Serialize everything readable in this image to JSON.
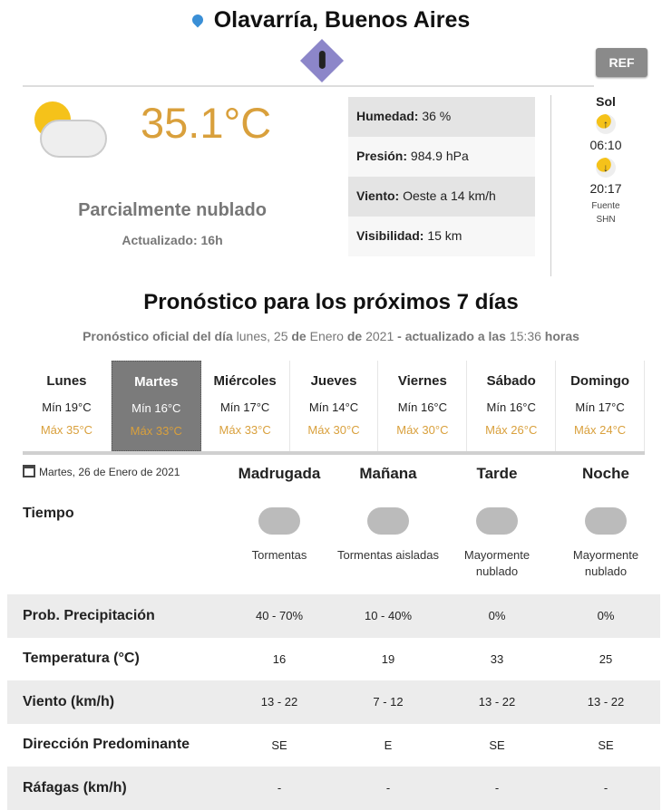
{
  "header": {
    "city": "Olavarría, Buenos Aires",
    "ref_label": "REF"
  },
  "current": {
    "temperature": "35.1°C",
    "condition": "Parcialmente nublado",
    "updated": "Actualizado: 16h",
    "details": [
      {
        "label": "Humedad:",
        "value": " 36 %"
      },
      {
        "label": "Presión:",
        "value": " 984.9 hPa"
      },
      {
        "label": "Viento:",
        "value": " Oeste a 14 km/h"
      },
      {
        "label": "Visibilidad:",
        "value": " 15 km"
      }
    ]
  },
  "sun": {
    "title": "Sol",
    "sunrise": "06:10",
    "sunset": "20:17",
    "source_label": "Fuente",
    "source": "SHN"
  },
  "forecast": {
    "title": "Pronóstico para los próximos 7 días",
    "subtitle": {
      "a": "Pronóstico oficial del día",
      "b": " lunes, 25 ",
      "c": "de",
      "d": " Enero ",
      "e": "de",
      "f": " 2021 ",
      "g": "- actualizado a las",
      "h": " 15:36 ",
      "i": "horas"
    },
    "days": [
      {
        "name": "Lunes",
        "min": "Mín 19°C",
        "max": "Máx 35°C"
      },
      {
        "name": "Martes",
        "min": "Mín 16°C",
        "max": "Máx 33°C",
        "active": true
      },
      {
        "name": "Miércoles",
        "min": "Mín 17°C",
        "max": "Máx 33°C"
      },
      {
        "name": "Jueves",
        "min": "Mín 14°C",
        "max": "Máx 30°C"
      },
      {
        "name": "Viernes",
        "min": "Mín 16°C",
        "max": "Máx 30°C"
      },
      {
        "name": "Sábado",
        "min": "Mín 16°C",
        "max": "Máx 26°C"
      },
      {
        "name": "Domingo",
        "min": "Mín 17°C",
        "max": "Máx 24°C"
      }
    ]
  },
  "detail": {
    "date": "Martes, 26 de Enero de 2021",
    "periods": [
      "Madrugada",
      "Mañana",
      "Tarde",
      "Noche"
    ],
    "weather_label": "Tiempo",
    "weather": [
      {
        "icon": "thunderstorm-icon",
        "text": "Tormentas"
      },
      {
        "icon": "isolated-storm-icon",
        "text": "Tormentas aisladas"
      },
      {
        "icon": "mostly-cloudy-day-icon",
        "text": "Mayormente nublado"
      },
      {
        "icon": "mostly-cloudy-night-icon",
        "text": "Mayormente nublado"
      }
    ],
    "rows": [
      {
        "label": "Prob. Precipitación",
        "values": [
          "40 - 70%",
          "10 - 40%",
          "0%",
          "0%"
        ]
      },
      {
        "label": "Temperatura (°C)",
        "values": [
          "16",
          "19",
          "33",
          "25"
        ]
      },
      {
        "label": "Viento (km/h)",
        "values": [
          "13 - 22",
          "7 - 12",
          "13 - 22",
          "13 - 22"
        ]
      },
      {
        "label": "Dirección Predominante",
        "values": [
          "SE",
          "E",
          "SE",
          "SE"
        ]
      },
      {
        "label": "Ráfagas (km/h)",
        "values": [
          "-",
          "-",
          "-",
          "-"
        ]
      }
    ]
  },
  "colors": {
    "accent": "#d9a03c",
    "active_day": "#7b7b7b",
    "pin": "#3a8fd6",
    "badge": "#8c86c9"
  }
}
